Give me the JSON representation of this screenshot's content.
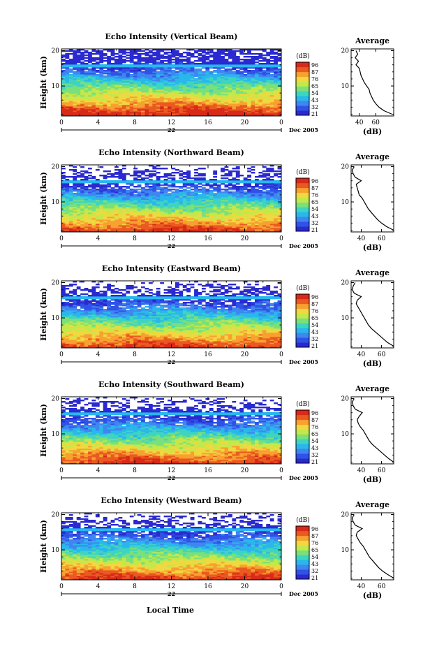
{
  "figure": {
    "day_label": "22",
    "month_label": "Dec 2005",
    "xlabel_bottom": "Local Time",
    "colorbar_unit": "(dB)",
    "colorbar_labels": [
      "96",
      "87",
      "76",
      "65",
      "54",
      "43",
      "32",
      "21"
    ],
    "colormap": [
      "#2a2ad0",
      "#2f53e6",
      "#3f86f0",
      "#29b7ec",
      "#3fd4c0",
      "#7ae07a",
      "#c4e84a",
      "#f0d840",
      "#f8a030",
      "#ea5a20",
      "#d82a18"
    ]
  },
  "chart_data": [
    {
      "type": "heatmap",
      "beam": "vertical",
      "title": "Echo Intensity (Vertical Beam)",
      "ylabel": "Height (km)",
      "x_ticks": [
        "0",
        "4",
        "8",
        "12",
        "16",
        "20",
        "0"
      ],
      "y_ticks": [
        "10",
        "20"
      ],
      "xlim": [
        0,
        24
      ],
      "ylim": [
        1.5,
        20.5
      ],
      "profile": {
        "title": "Average",
        "xlabel": "(dB)",
        "xlim": [
          30,
          82
        ],
        "x_ticks": [
          "40",
          "60"
        ],
        "heights": [
          2,
          3,
          4,
          5,
          6,
          7,
          8,
          9,
          10,
          11,
          12,
          13,
          14,
          15,
          16,
          17,
          18,
          19,
          20
        ],
        "values": [
          80,
          70,
          64,
          60,
          57,
          55,
          53,
          52,
          49,
          46,
          44,
          42,
          41,
          40,
          36,
          39,
          35,
          38,
          36
        ]
      }
    },
    {
      "type": "heatmap",
      "beam": "northward",
      "title": "Echo Intensity (Northward Beam)",
      "ylabel": "Height (km)",
      "x_ticks": [
        "0",
        "4",
        "8",
        "12",
        "16",
        "20",
        "0"
      ],
      "y_ticks": [
        "10",
        "20"
      ],
      "xlim": [
        0,
        24
      ],
      "ylim": [
        1.5,
        20.5
      ],
      "profile": {
        "title": "Average",
        "xlabel": "(dB)",
        "xlim": [
          30,
          72
        ],
        "x_ticks": [
          "40",
          "60"
        ],
        "heights": [
          2,
          3,
          4,
          5,
          6,
          7,
          8,
          9,
          10,
          11,
          12,
          13,
          14,
          15,
          16,
          17,
          18,
          19,
          20
        ],
        "values": [
          72,
          65,
          60,
          56,
          53,
          50,
          47,
          45,
          43,
          41,
          38,
          37,
          36,
          35,
          40,
          34,
          32,
          31,
          33
        ]
      }
    },
    {
      "type": "heatmap",
      "beam": "eastward",
      "title": "Echo Intensity (Eastward Beam)",
      "ylabel": "Height (km)",
      "x_ticks": [
        "0",
        "4",
        "8",
        "12",
        "16",
        "20",
        "0"
      ],
      "y_ticks": [
        "10",
        "20"
      ],
      "xlim": [
        0,
        24
      ],
      "ylim": [
        1.5,
        20.5
      ],
      "profile": {
        "title": "Average",
        "xlabel": "(dB)",
        "xlim": [
          30,
          72
        ],
        "x_ticks": [
          "40",
          "60"
        ],
        "heights": [
          2,
          3,
          4,
          5,
          6,
          7,
          8,
          9,
          10,
          11,
          12,
          13,
          14,
          15,
          16,
          17,
          18,
          19,
          20
        ],
        "values": [
          72,
          66,
          62,
          58,
          54,
          50,
          47,
          45,
          43,
          41,
          39,
          37,
          35,
          36,
          40,
          33,
          31,
          32,
          34
        ]
      }
    },
    {
      "type": "heatmap",
      "beam": "southward",
      "title": "Echo Intensity (Southward Beam)",
      "ylabel": "Height (km)",
      "x_ticks": [
        "0",
        "4",
        "8",
        "12",
        "16",
        "20",
        "0"
      ],
      "y_ticks": [
        "10",
        "20"
      ],
      "xlim": [
        0,
        24
      ],
      "ylim": [
        1.5,
        20.5
      ],
      "profile": {
        "title": "Average",
        "xlabel": "(dB)",
        "xlim": [
          30,
          72
        ],
        "x_ticks": [
          "40",
          "60"
        ],
        "heights": [
          2,
          3,
          4,
          5,
          6,
          7,
          8,
          9,
          10,
          11,
          12,
          13,
          14,
          15,
          16,
          17,
          18,
          19,
          20
        ],
        "values": [
          72,
          67,
          63,
          59,
          55,
          51,
          48,
          46,
          44,
          42,
          39,
          37,
          36,
          38,
          41,
          34,
          32,
          31,
          33
        ]
      }
    },
    {
      "type": "heatmap",
      "beam": "westward",
      "title": "Echo Intensity (Westward Beam)",
      "ylabel": "Height (km)",
      "x_ticks": [
        "0",
        "4",
        "8",
        "12",
        "16",
        "20",
        "0"
      ],
      "y_ticks": [
        "10",
        "20"
      ],
      "xlim": [
        0,
        24
      ],
      "ylim": [
        1.5,
        20.5
      ],
      "profile": {
        "title": "Average",
        "xlabel": "(dB)",
        "xlim": [
          30,
          72
        ],
        "x_ticks": [
          "40",
          "60"
        ],
        "heights": [
          2,
          3,
          4,
          5,
          6,
          7,
          8,
          9,
          10,
          11,
          12,
          13,
          14,
          15,
          16,
          17,
          18,
          19,
          20
        ],
        "values": [
          72,
          66,
          61,
          57,
          54,
          51,
          48,
          46,
          44,
          42,
          39,
          37,
          35,
          36,
          41,
          34,
          32,
          31,
          33
        ]
      }
    }
  ]
}
